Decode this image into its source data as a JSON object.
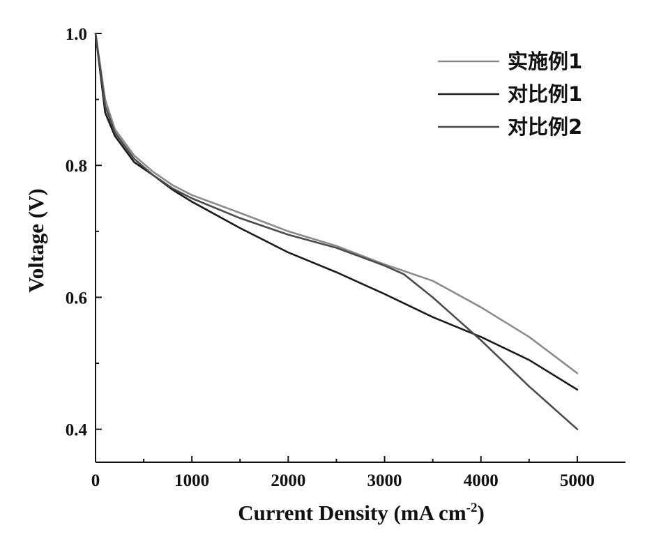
{
  "chart_data": {
    "type": "line",
    "title": "",
    "xlabel": "Current Density (mA cm",
    "xlabel_sup": "-2",
    "xlabel_tail": ")",
    "ylabel": "Voltage (V)",
    "xlim": [
      0,
      5500
    ],
    "ylim": [
      0.35,
      1.0
    ],
    "xticks": [
      0,
      1000,
      2000,
      3000,
      4000,
      5000
    ],
    "xtick_labels": [
      "0",
      "1000",
      "2000",
      "3000",
      "4000",
      "5000"
    ],
    "yticks": [
      0.4,
      0.6,
      0.8,
      1.0
    ],
    "ytick_labels": [
      "0.4",
      "0.6",
      "0.8",
      "1.0"
    ],
    "legend_position": "top-right",
    "series": [
      {
        "name": "实施例1",
        "color": "#8a8a8a",
        "x": [
          0,
          100,
          200,
          400,
          600,
          800,
          1000,
          1500,
          2000,
          2500,
          3000,
          3500,
          4000,
          4500,
          5000
        ],
        "y": [
          1.0,
          0.9,
          0.855,
          0.815,
          0.79,
          0.77,
          0.755,
          0.728,
          0.7,
          0.678,
          0.65,
          0.625,
          0.585,
          0.54,
          0.485
        ]
      },
      {
        "name": "对比例1",
        "color": "#1a1a1a",
        "x": [
          0,
          100,
          200,
          400,
          600,
          800,
          1000,
          1500,
          2000,
          2500,
          3000,
          3500,
          4000,
          4500,
          5000
        ],
        "y": [
          1.0,
          0.88,
          0.845,
          0.805,
          0.785,
          0.763,
          0.745,
          0.705,
          0.668,
          0.638,
          0.605,
          0.57,
          0.54,
          0.505,
          0.46
        ]
      },
      {
        "name": "对比例2",
        "color": "#4a4a4a",
        "x": [
          0,
          100,
          200,
          400,
          600,
          800,
          1000,
          1500,
          2000,
          2500,
          3000,
          3200,
          3500,
          4000,
          4500,
          5000
        ],
        "y": [
          1.0,
          0.89,
          0.85,
          0.81,
          0.785,
          0.765,
          0.75,
          0.72,
          0.695,
          0.675,
          0.648,
          0.635,
          0.6,
          0.535,
          0.465,
          0.4
        ]
      }
    ]
  }
}
